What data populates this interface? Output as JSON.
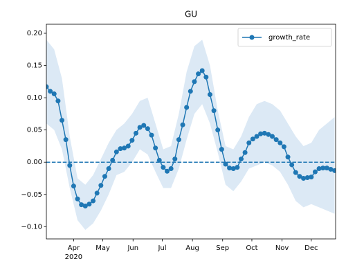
{
  "chart_data": {
    "type": "line",
    "title": "GU",
    "x": [
      "2020-03-04",
      "2020-03-08",
      "2020-03-12",
      "2020-03-16",
      "2020-03-20",
      "2020-03-24",
      "2020-03-28",
      "2020-04-01",
      "2020-04-05",
      "2020-04-09",
      "2020-04-13",
      "2020-04-17",
      "2020-04-21",
      "2020-04-25",
      "2020-04-29",
      "2020-05-03",
      "2020-05-07",
      "2020-05-11",
      "2020-05-15",
      "2020-05-19",
      "2020-05-23",
      "2020-05-27",
      "2020-05-31",
      "2020-06-04",
      "2020-06-08",
      "2020-06-12",
      "2020-06-16",
      "2020-06-20",
      "2020-06-24",
      "2020-06-28",
      "2020-07-02",
      "2020-07-06",
      "2020-07-10",
      "2020-07-14",
      "2020-07-18",
      "2020-07-22",
      "2020-07-26",
      "2020-07-30",
      "2020-08-03",
      "2020-08-07",
      "2020-08-11",
      "2020-08-15",
      "2020-08-19",
      "2020-08-23",
      "2020-08-27",
      "2020-08-31",
      "2020-09-04",
      "2020-09-08",
      "2020-09-12",
      "2020-09-16",
      "2020-09-20",
      "2020-09-24",
      "2020-09-28",
      "2020-10-02",
      "2020-10-06",
      "2020-10-10",
      "2020-10-14",
      "2020-10-18",
      "2020-10-22",
      "2020-10-26",
      "2020-10-30",
      "2020-11-03",
      "2020-11-07",
      "2020-11-11",
      "2020-11-15",
      "2020-11-19",
      "2020-11-23",
      "2020-11-27",
      "2020-12-01",
      "2020-12-05",
      "2020-12-09",
      "2020-12-13",
      "2020-12-17",
      "2020-12-21",
      "2020-12-25"
    ],
    "series": [
      {
        "name": "growth_rate",
        "color": "#1f77b4",
        "values": [
          0.117,
          0.11,
          0.106,
          0.095,
          0.065,
          0.035,
          -0.005,
          -0.037,
          -0.057,
          -0.066,
          -0.068,
          -0.065,
          -0.06,
          -0.048,
          -0.036,
          -0.022,
          -0.01,
          0.003,
          0.016,
          0.021,
          0.022,
          0.025,
          0.034,
          0.045,
          0.054,
          0.057,
          0.052,
          0.042,
          0.022,
          0.003,
          -0.008,
          -0.014,
          -0.01,
          0.005,
          0.035,
          0.058,
          0.085,
          0.11,
          0.125,
          0.137,
          0.142,
          0.132,
          0.105,
          0.08,
          0.05,
          0.02,
          -0.003,
          -0.009,
          -0.01,
          -0.008,
          0.005,
          0.015,
          0.03,
          0.036,
          0.04,
          0.044,
          0.045,
          0.043,
          0.04,
          0.035,
          0.03,
          0.024,
          0.008,
          -0.004,
          -0.016,
          -0.022,
          -0.025,
          -0.024,
          -0.023,
          -0.015,
          -0.01,
          -0.009,
          -0.009,
          -0.011,
          -0.013
        ]
      }
    ],
    "band": {
      "color": "#dce9f5",
      "x": [
        "2020-03-04",
        "2020-03-12",
        "2020-03-20",
        "2020-03-28",
        "2020-04-05",
        "2020-04-13",
        "2020-04-21",
        "2020-04-29",
        "2020-05-07",
        "2020-05-15",
        "2020-05-23",
        "2020-05-31",
        "2020-06-08",
        "2020-06-16",
        "2020-06-24",
        "2020-07-02",
        "2020-07-10",
        "2020-07-18",
        "2020-07-26",
        "2020-08-03",
        "2020-08-11",
        "2020-08-19",
        "2020-08-27",
        "2020-09-04",
        "2020-09-12",
        "2020-09-20",
        "2020-09-28",
        "2020-10-06",
        "2020-10-14",
        "2020-10-22",
        "2020-10-30",
        "2020-11-07",
        "2020-11-15",
        "2020-11-23",
        "2020-12-01",
        "2020-12-09",
        "2020-12-17",
        "2020-12-25"
      ],
      "upper": [
        0.19,
        0.175,
        0.13,
        0.04,
        -0.025,
        -0.035,
        -0.02,
        0.005,
        0.03,
        0.05,
        0.06,
        0.075,
        0.095,
        0.1,
        0.06,
        0.02,
        0.025,
        0.075,
        0.14,
        0.18,
        0.19,
        0.15,
        0.08,
        0.025,
        0.02,
        0.04,
        0.07,
        0.09,
        0.095,
        0.09,
        0.08,
        0.06,
        0.04,
        0.025,
        0.03,
        0.05,
        0.06,
        0.07
      ],
      "lower": [
        0.06,
        0.05,
        0.02,
        -0.04,
        -0.09,
        -0.105,
        -0.095,
        -0.075,
        -0.05,
        -0.02,
        -0.015,
        0,
        0.02,
        0.012,
        -0.015,
        -0.04,
        -0.04,
        -0.01,
        0.035,
        0.075,
        0.09,
        0.06,
        0.015,
        -0.035,
        -0.045,
        -0.03,
        -0.01,
        -0.005,
        0,
        -0.005,
        -0.015,
        -0.035,
        -0.06,
        -0.07,
        -0.065,
        -0.07,
        -0.075,
        -0.08
      ]
    },
    "hline": 0,
    "xlim": [
      "2020-03-04",
      "2020-12-26"
    ],
    "xticks": [
      {
        "value": "2020-04-01",
        "label": "Apr"
      },
      {
        "value": "2020-05-01",
        "label": "May"
      },
      {
        "value": "2020-06-01",
        "label": "Jun"
      },
      {
        "value": "2020-07-01",
        "label": "Jul"
      },
      {
        "value": "2020-08-01",
        "label": "Aug"
      },
      {
        "value": "2020-09-01",
        "label": "Sep"
      },
      {
        "value": "2020-10-01",
        "label": "Oct"
      },
      {
        "value": "2020-11-01",
        "label": "Nov"
      },
      {
        "value": "2020-12-01",
        "label": "Dec"
      }
    ],
    "year_label": "2020",
    "ylim": [
      -0.119,
      0.214
    ],
    "yticks": [
      {
        "value": -0.1,
        "label": "−0.10"
      },
      {
        "value": -0.05,
        "label": "−0.05"
      },
      {
        "value": 0,
        "label": "0.00"
      },
      {
        "value": 0.05,
        "label": "0.05"
      },
      {
        "value": 0.1,
        "label": "0.10"
      },
      {
        "value": 0.15,
        "label": "0.15"
      },
      {
        "value": 0.2,
        "label": "0.20"
      }
    ],
    "legend": "upper right"
  }
}
